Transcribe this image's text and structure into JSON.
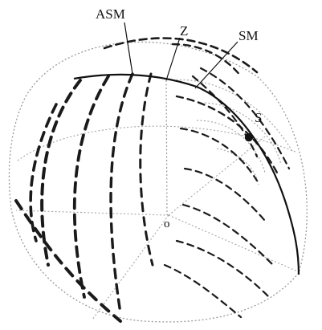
{
  "diagram": {
    "labels": {
      "asm": "ASM",
      "z": "Z",
      "sm": "SM",
      "s": "S",
      "o": "o"
    },
    "colors": {
      "ink": "#111111",
      "grid": "#9a9a9a",
      "dash": "#1a1a1a",
      "background": "#ffffff"
    }
  }
}
